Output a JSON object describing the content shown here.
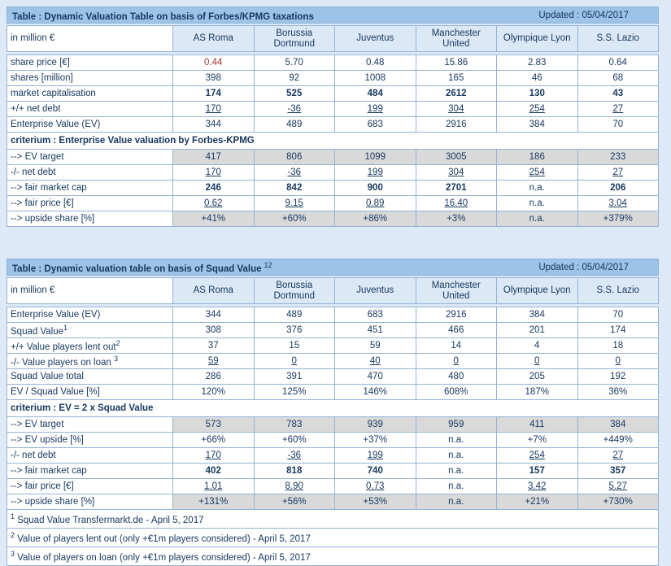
{
  "colors": {
    "page_background": "#dde9f7",
    "title_bar": "#9dc3e8",
    "header_cell": "#dbe8f6",
    "gray_cell": "#d9d9d9",
    "border": "#95b3d7",
    "text": "#17375e",
    "negative_highlight": "#963634"
  },
  "tables": [
    {
      "title": "Table : Dynamic Valuation Table on basis of Forbes/KPMG taxations",
      "title_sup": "",
      "updated": "Updated : 05/04/2017",
      "unit_label": "in million €",
      "columns": [
        "AS Roma",
        "Borussia Dortmund",
        "Juventus",
        "Manchester United",
        "Olympique Lyon",
        "S.S. Lazio"
      ],
      "rows": [
        {
          "label": "share price [€]",
          "style": "plain",
          "values": [
            "0.44",
            "5.70",
            "0.48",
            "15.86",
            "2.83",
            "0.64"
          ],
          "red_indices": [
            0
          ]
        },
        {
          "label": "shares [million]",
          "style": "plain",
          "values": [
            "398",
            "92",
            "1008",
            "165",
            "46",
            "68"
          ]
        },
        {
          "label": "market capitalisation",
          "style": "bold",
          "values": [
            "174",
            "525",
            "484",
            "2612",
            "130",
            "43"
          ]
        },
        {
          "label": "+/+ net debt",
          "style": "underline",
          "values": [
            "170",
            "-36",
            "199",
            "304",
            "254",
            "27"
          ]
        },
        {
          "label": "Enterprise Value (EV)",
          "style": "plain",
          "values": [
            "344",
            "489",
            "683",
            "2916",
            "384",
            "70"
          ]
        },
        {
          "section": "criterium : Enterprise Value valuation by Forbes-KPMG"
        },
        {
          "label": "--> EV target",
          "style": "gray",
          "values": [
            "417",
            "806",
            "1099",
            "3005",
            "186",
            "233"
          ]
        },
        {
          "label": "-/- net debt",
          "style": "underline",
          "values": [
            "170",
            "-36",
            "199",
            "304",
            "254",
            "27"
          ]
        },
        {
          "label": "--> fair market cap",
          "style": "bold",
          "values": [
            "246",
            "842",
            "900",
            "2701",
            "n.a.",
            "206"
          ]
        },
        {
          "label": "--> fair price [€]",
          "style": "underline",
          "values": [
            "0.62",
            "9.15",
            "0.89",
            "16.40",
            "n.a.",
            "3.04"
          ]
        },
        {
          "label": "--> upside share [%]",
          "style": "gray",
          "values": [
            "+41%",
            "+60%",
            "+86%",
            "+3%",
            "n.a.",
            "+379%"
          ]
        }
      ],
      "footnotes": []
    },
    {
      "title": "Table : Dynamic valuation table on basis of Squad Value",
      "title_sup": "12",
      "updated": "Updated : 05/04/2017",
      "unit_label": "in million €",
      "columns": [
        "AS Roma",
        "Borussia Dortmund",
        "Juventus",
        "Manchester United",
        "Olympique Lyon",
        "S.S. Lazio"
      ],
      "rows": [
        {
          "label": "Enterprise Value (EV)",
          "style": "plain",
          "values": [
            "344",
            "489",
            "683",
            "2916",
            "384",
            "70"
          ]
        },
        {
          "label": "Squad Value",
          "sup": "1",
          "style": "plain",
          "values": [
            "308",
            "376",
            "451",
            "466",
            "201",
            "174"
          ]
        },
        {
          "label": "+/+ Value players lent out",
          "sup": "2",
          "style": "plain",
          "values": [
            "37",
            "15",
            "59",
            "14",
            "4",
            "18"
          ]
        },
        {
          "label": "-/- Value players on loan ",
          "sup": "3",
          "style": "underline",
          "values": [
            "59",
            "0",
            "40",
            "0",
            "0",
            "0"
          ]
        },
        {
          "label": "Squad Value total",
          "style": "plain",
          "values": [
            "286",
            "391",
            "470",
            "480",
            "205",
            "192"
          ]
        },
        {
          "label": "EV / Squad Value [%]",
          "style": "plain",
          "values": [
            "120%",
            "125%",
            "146%",
            "608%",
            "187%",
            "36%"
          ]
        },
        {
          "section": "criterium : EV = 2 x Squad Value"
        },
        {
          "label": "--> EV target",
          "style": "gray",
          "values": [
            "573",
            "783",
            "939",
            "959",
            "411",
            "384"
          ]
        },
        {
          "label": "--> EV upside [%]",
          "style": "plain",
          "values": [
            "+66%",
            "+60%",
            "+37%",
            "n.a.",
            "+7%",
            "+449%"
          ]
        },
        {
          "label": "-/- net debt",
          "style": "underline",
          "values": [
            "170",
            "-36",
            "199",
            "n.a.",
            "254",
            "27"
          ]
        },
        {
          "label": "--> fair market cap",
          "style": "bold",
          "values": [
            "402",
            "818",
            "740",
            "n.a.",
            "157",
            "357"
          ]
        },
        {
          "label": "--> fair price [€]",
          "style": "underline",
          "values": [
            "1.01",
            "8.90",
            "0.73",
            "n.a.",
            "3.42",
            "5.27"
          ]
        },
        {
          "label": "--> upside share [%]",
          "style": "gray",
          "values": [
            "+131%",
            "+56%",
            "+53%",
            "n.a.",
            "+21%",
            "+730%"
          ]
        }
      ],
      "footnotes": [
        {
          "sup": "1",
          "text": "Squad Value Transfermarkt.de - April 5, 2017"
        },
        {
          "sup": "2",
          "text": "Value of players lent out (only +€1m players considered) - April 5, 2017"
        },
        {
          "sup": "3",
          "text": "Value of players on loan (only +€1m players considered) - April 5, 2017"
        }
      ]
    }
  ]
}
